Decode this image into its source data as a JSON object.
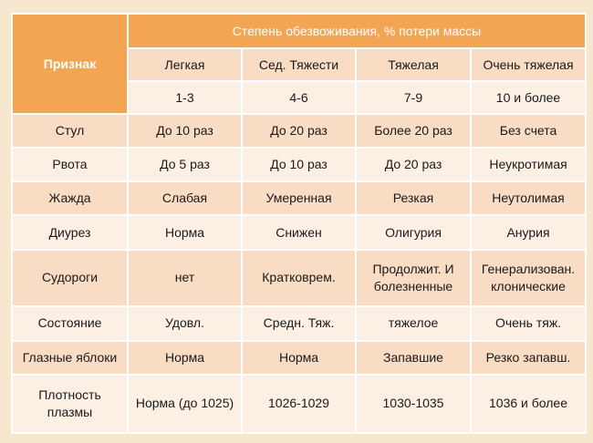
{
  "header": {
    "feature_label": "Признак",
    "group_label": "Степень обезвоживания, % потери массы",
    "degrees": [
      "Легкая",
      "Сед. Тяжести",
      "Тяжелая",
      "Очень тяжелая"
    ],
    "losses": [
      "1-3",
      "4-6",
      "7-9",
      "10 и более"
    ]
  },
  "rows": [
    {
      "feature": "Стул",
      "values": [
        "До 10 раз",
        "До 20 раз",
        "Более 20 раз",
        "Без счета"
      ]
    },
    {
      "feature": "Рвота",
      "values": [
        "До 5 раз",
        "До 10 раз",
        "До 20 раз",
        "Неукротимая"
      ]
    },
    {
      "feature": "Жажда",
      "values": [
        "Слабая",
        "Умеренная",
        "Резкая",
        "Неутолимая"
      ]
    },
    {
      "feature": "Диурез",
      "values": [
        "Норма",
        "Снижен",
        "Олигурия",
        "Анурия"
      ]
    },
    {
      "feature": "Судороги",
      "values": [
        "нет",
        "Кратковрем.",
        "Продолжит. И болезненные",
        "Генерализован. клонические"
      ]
    },
    {
      "feature": "Состояние",
      "values": [
        "Удовл.",
        "Средн. Тяж.",
        "тяжелое",
        "Очень тяж."
      ]
    },
    {
      "feature": "Глазные яблоки",
      "values": [
        "Норма",
        "Норма",
        "Запавшие",
        "Резко запавш."
      ]
    },
    {
      "feature": "Плотность плазмы",
      "values": [
        "Норма (до 1025)",
        "1026-1029",
        "1030-1035",
        "1036 и более"
      ]
    }
  ]
}
